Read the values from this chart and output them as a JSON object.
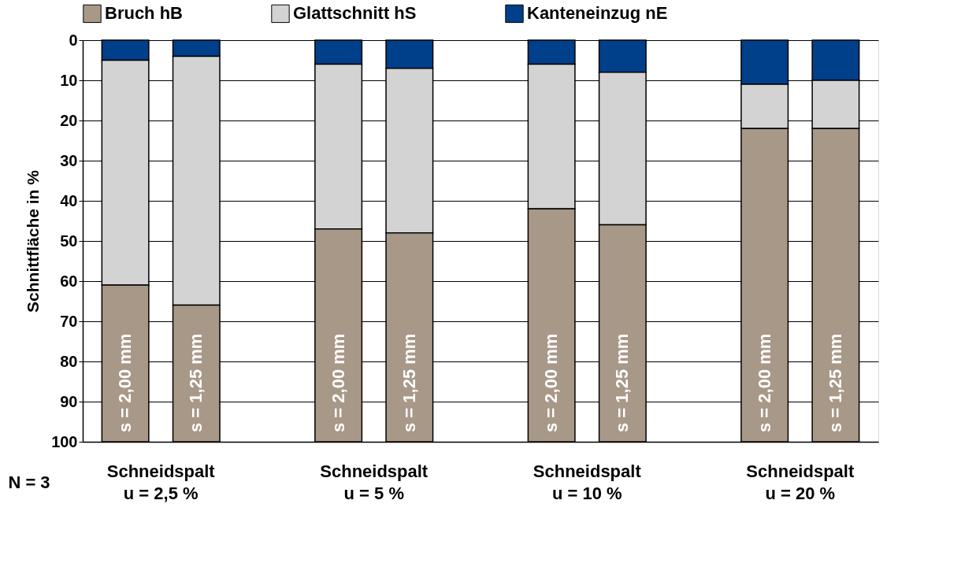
{
  "chart_data": {
    "type": "bar",
    "stacked": true,
    "categories": [
      "s = 2,00 mm",
      "s = 1,25 mm",
      "s = 2,00 mm",
      "s = 1,25 mm",
      "s = 2,00 mm",
      "s = 1,25 mm",
      "s = 2,00 mm",
      "s = 1,25 mm"
    ],
    "series": [
      {
        "name": "Kanteneinzug nE",
        "color": "#003f8a",
        "values": [
          5,
          4,
          6,
          7,
          6,
          8,
          11,
          10
        ]
      },
      {
        "name": "Glattschnitt hS",
        "color": "#d3d3d3",
        "values": [
          56,
          62,
          41,
          41,
          36,
          38,
          11,
          12
        ]
      },
      {
        "name": "Bruch hB",
        "color": "#a89888",
        "values": [
          39,
          34,
          53,
          52,
          58,
          54,
          78,
          78
        ]
      }
    ],
    "ylabel": "Schnittfläche in %",
    "ylim": [
      100,
      0
    ],
    "yticks": [
      0,
      10,
      20,
      30,
      40,
      50,
      60,
      70,
      80,
      90,
      100
    ],
    "grid": "y",
    "legend": "top",
    "annotations": [
      "N = 3",
      "Schneidspalt\nu = 2,5 %",
      "Schneidspalt\nu = 5 %",
      "Schneidspalt\nu = 10 %",
      "Schneidspalt\nu = 20 %"
    ]
  }
}
